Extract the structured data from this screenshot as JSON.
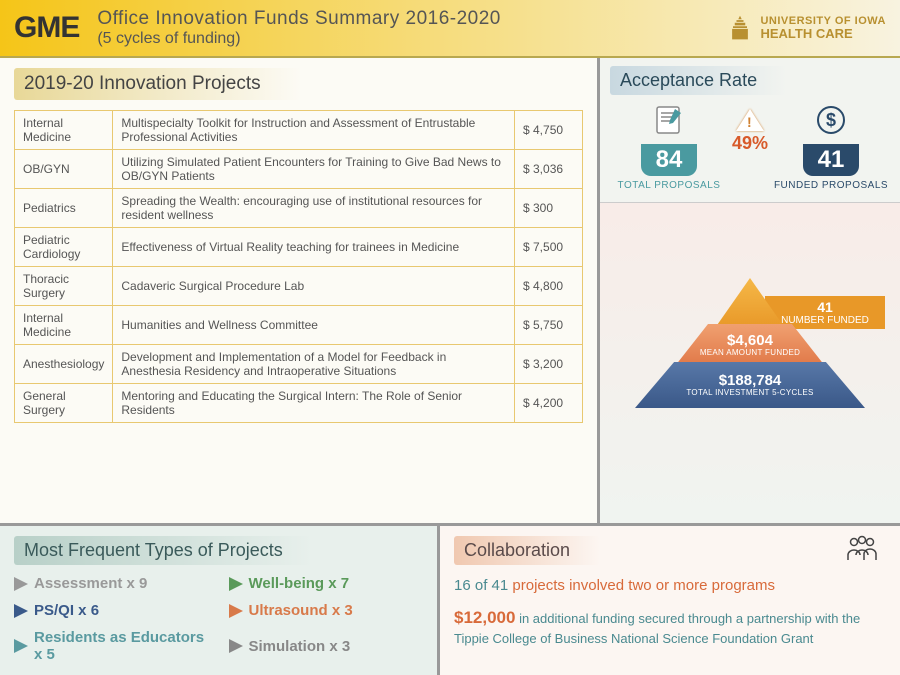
{
  "header": {
    "gme": "GME",
    "title": "Office Innovation Funds Summary 2016-2020",
    "subtitle": "(5 cycles of funding)",
    "logo_line1": "UNIVERSITY OF IOWA",
    "logo_line2": "HEALTH CARE"
  },
  "projects": {
    "title": "2019-20 Innovation Projects",
    "rows": [
      {
        "dept": "Internal Medicine",
        "desc": "Multispecialty Toolkit for Instruction and Assessment of Entrustable Professional Activities",
        "amount": "$  4,750"
      },
      {
        "dept": "OB/GYN",
        "desc": "Utilizing Simulated Patient Encounters for Training to Give Bad News to OB/GYN Patients",
        "amount": "$  3,036"
      },
      {
        "dept": "Pediatrics",
        "desc": "Spreading the Wealth: encouraging use of institutional resources for resident wellness",
        "amount": "$     300"
      },
      {
        "dept": "Pediatric Cardiology",
        "desc": "Effectiveness of Virtual Reality teaching for trainees in Medicine",
        "amount": "$  7,500"
      },
      {
        "dept": "Thoracic Surgery",
        "desc": "Cadaveric Surgical Procedure Lab",
        "amount": "$  4,800"
      },
      {
        "dept": "Internal Medicine",
        "desc": "Humanities and Wellness Committee",
        "amount": "$  5,750"
      },
      {
        "dept": "Anesthesiology",
        "desc": "Development and Implementation of a Model for Feedback in Anesthesia Residency and Intraoperative Situations",
        "amount": "$  3,200"
      },
      {
        "dept": "General Surgery",
        "desc": "Mentoring and Educating the Surgical Intern: The Role of Senior Residents",
        "amount": "$  4,200"
      }
    ]
  },
  "acceptance": {
    "title": "Acceptance Rate",
    "rate": "49%",
    "total_proposals": "84",
    "total_label": "TOTAL PROPOSALS",
    "funded_proposals": "41",
    "funded_label": "FUNDED PROPOSALS"
  },
  "pyramid": {
    "tier1_value": "41",
    "tier1_label": "NUMBER FUNDED",
    "tier2_value": "$4,604",
    "tier2_label": "MEAN AMOUNT FUNDED",
    "tier3_value": "$188,784",
    "tier3_label": "TOTAL INVESTMENT 5-CYCLES"
  },
  "freq": {
    "title": "Most Frequent Types of Projects",
    "items": [
      {
        "label": "Assessment x 9",
        "color": "#999999"
      },
      {
        "label": "Well-being x 7",
        "color": "#5a9a5a"
      },
      {
        "label": "PS/QI x 6",
        "color": "#3a5a8a"
      },
      {
        "label": "Ultrasound x 3",
        "color": "#d87a4a"
      },
      {
        "label": "Residents as Educators x 5",
        "color": "#5a9aa0"
      },
      {
        "label": "Simulation x 3",
        "color": "#888888"
      }
    ]
  },
  "collab": {
    "title": "Collaboration",
    "line1_strong": "16 of 41",
    "line1_rest": " projects involved two or more programs",
    "line2_amount": "$12,000",
    "line2_rest": " in additional funding secured through a partnership with the Tippie College of Business National Science Foundation Grant"
  }
}
